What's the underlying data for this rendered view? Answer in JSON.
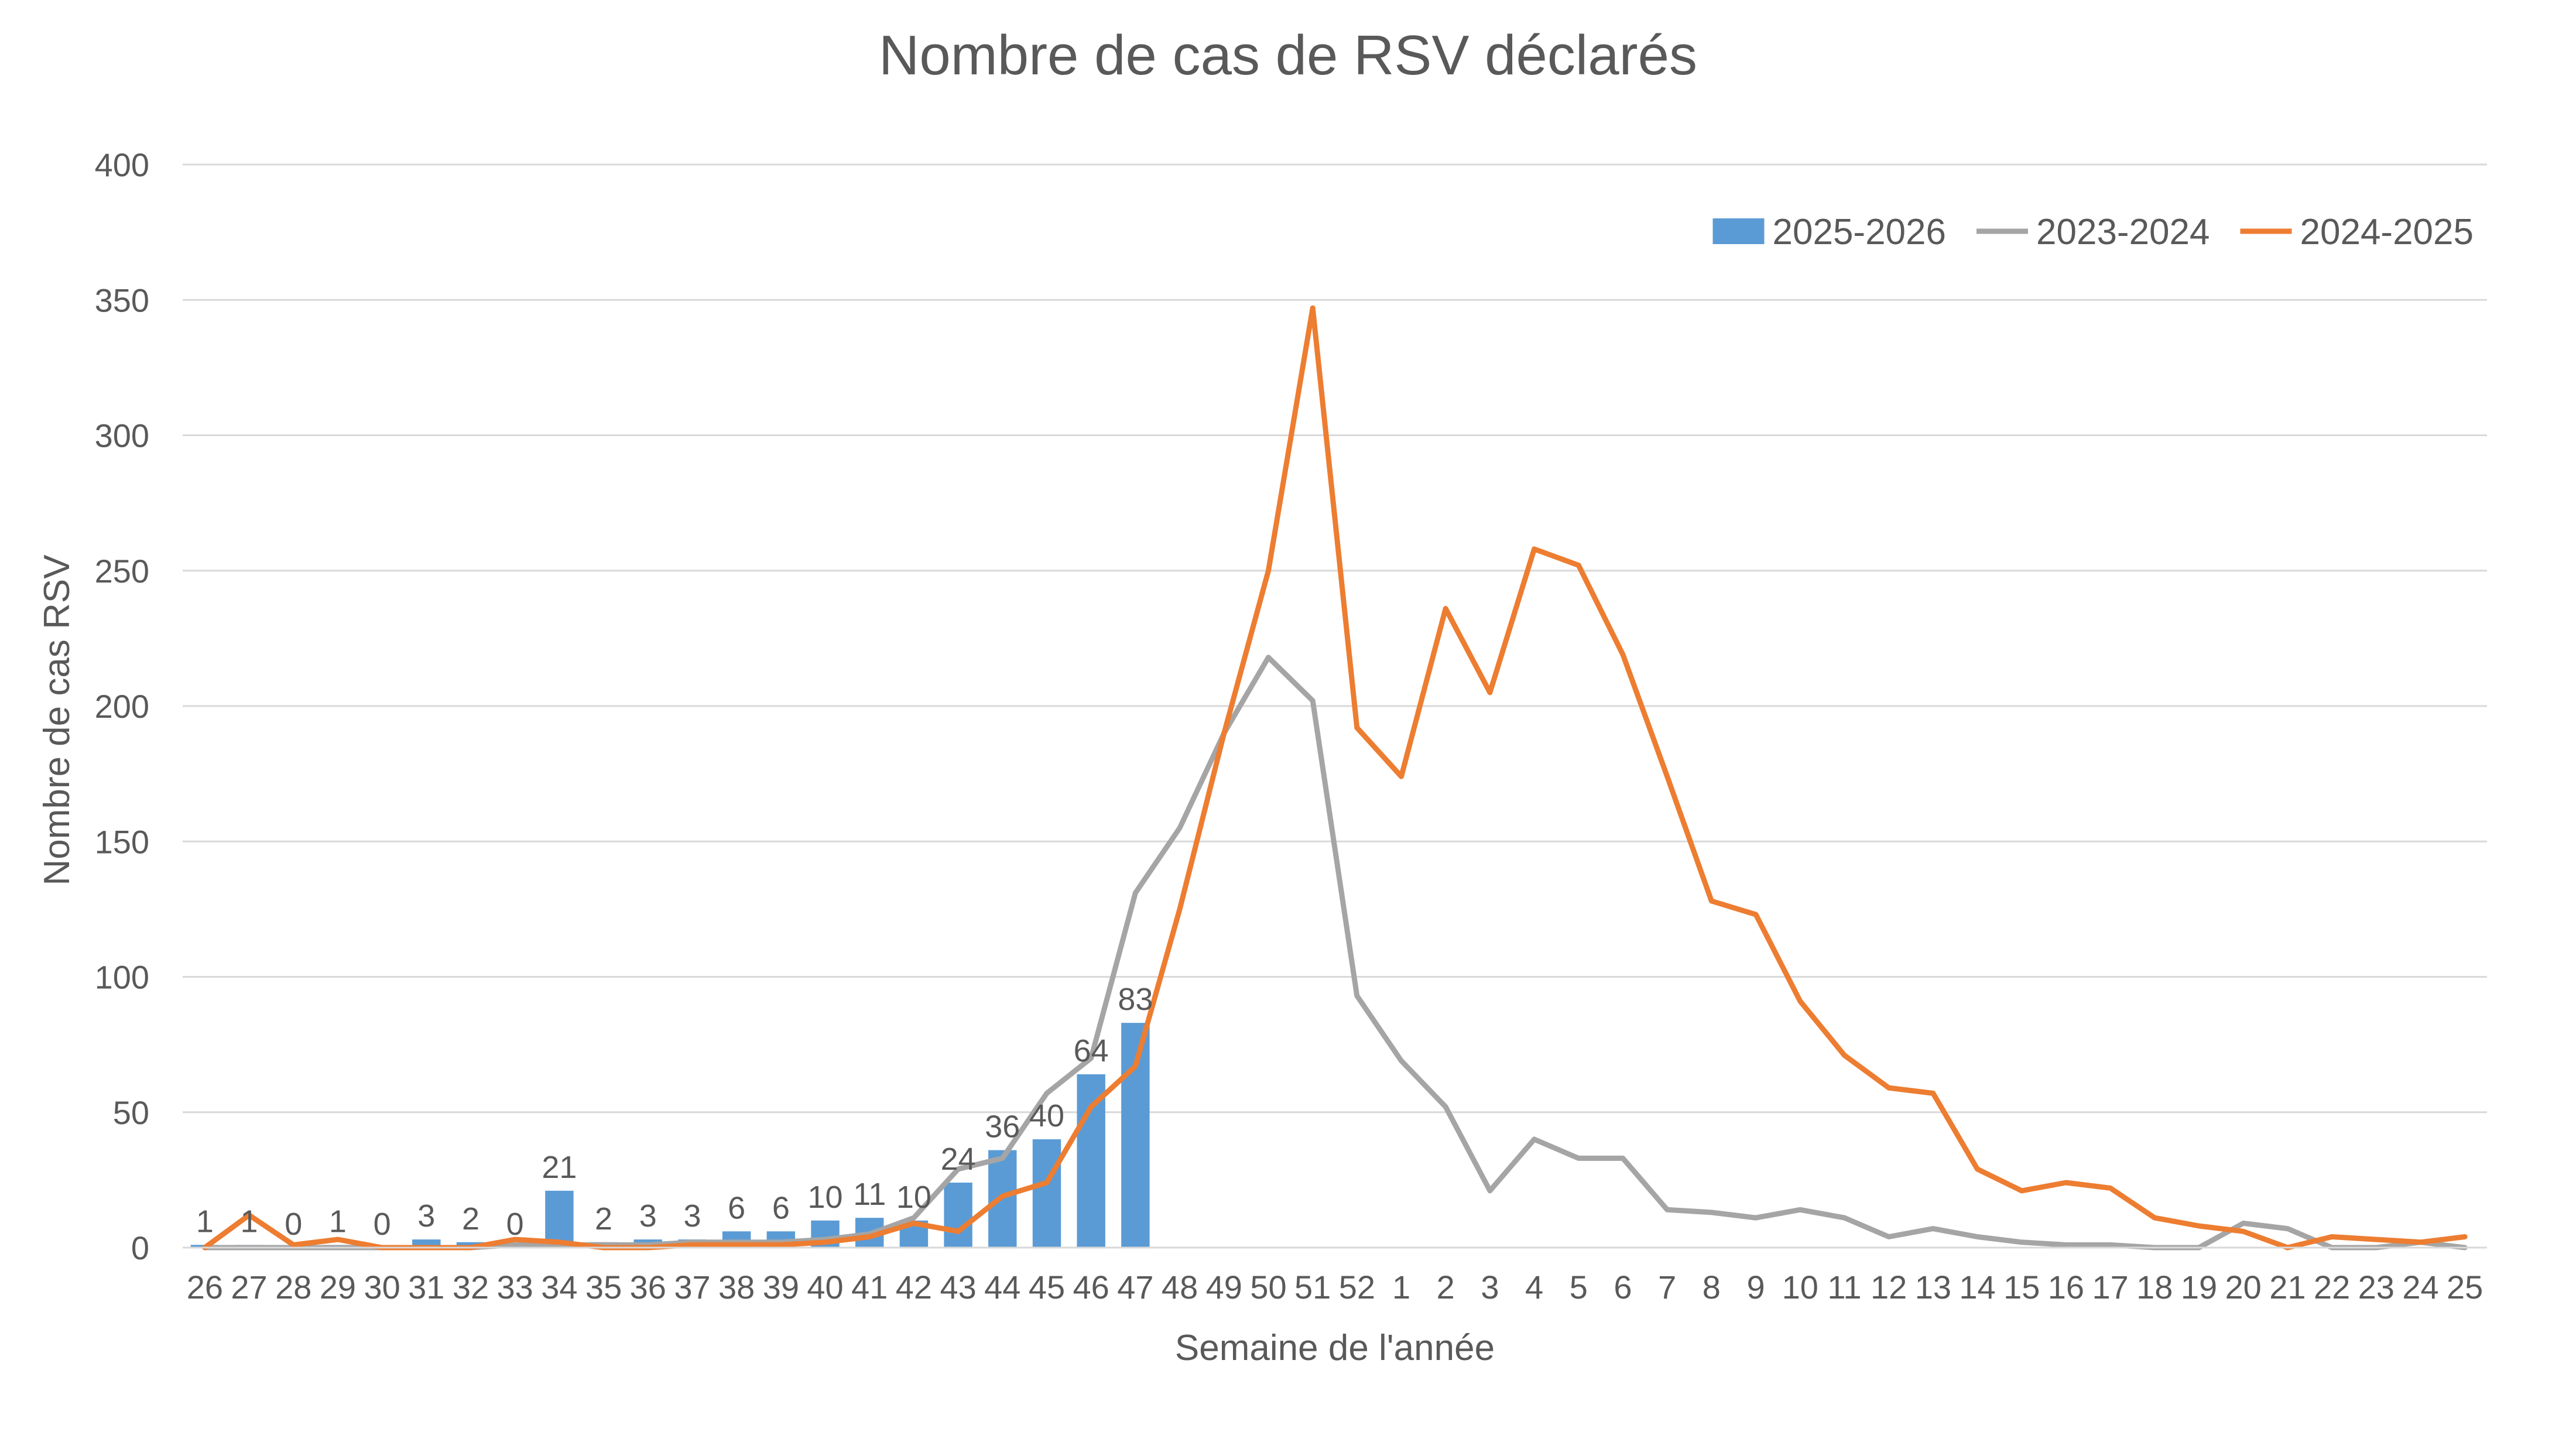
{
  "chart_data": {
    "type": "bar+line",
    "title": "Nombre de cas de RSV déclarés",
    "xlabel": "Semaine de l'année",
    "ylabel": "Nombre de cas RSV",
    "ylim": [
      0,
      400
    ],
    "yticks": [
      0,
      50,
      100,
      150,
      200,
      250,
      300,
      350,
      400
    ],
    "grid": true,
    "legend_position": "top-right",
    "categories": [
      "26",
      "27",
      "28",
      "29",
      "30",
      "31",
      "32",
      "33",
      "34",
      "35",
      "36",
      "37",
      "38",
      "39",
      "40",
      "41",
      "42",
      "43",
      "44",
      "45",
      "46",
      "47",
      "48",
      "49",
      "50",
      "51",
      "52",
      "1",
      "2",
      "3",
      "4",
      "5",
      "6",
      "7",
      "8",
      "9",
      "10",
      "11",
      "12",
      "13",
      "14",
      "15",
      "16",
      "17",
      "18",
      "19",
      "20",
      "21",
      "22",
      "23",
      "24",
      "25"
    ],
    "series": [
      {
        "name": "2025-2026",
        "type": "bar",
        "color": "#5b9bd5",
        "values": [
          1,
          1,
          0,
          1,
          0,
          3,
          2,
          0,
          21,
          2,
          3,
          3,
          6,
          6,
          10,
          11,
          10,
          24,
          36,
          40,
          64,
          83,
          null,
          null,
          null,
          null,
          null,
          null,
          null,
          null,
          null,
          null,
          null,
          null,
          null,
          null,
          null,
          null,
          null,
          null,
          null,
          null,
          null,
          null,
          null,
          null,
          null,
          null,
          null,
          null,
          null,
          null
        ]
      },
      {
        "name": "2023-2024",
        "type": "line",
        "color": "#a5a5a5",
        "values": [
          0,
          0,
          0,
          0,
          0,
          0,
          0,
          1,
          1,
          1,
          1,
          2,
          2,
          2,
          3,
          5,
          11,
          29,
          33,
          57,
          70,
          131,
          155,
          190,
          218,
          202,
          93,
          69,
          52,
          21,
          40,
          33,
          33,
          14,
          13,
          11,
          14,
          11,
          4,
          7,
          4,
          2,
          1,
          1,
          0,
          0,
          9,
          7,
          0,
          0,
          2,
          0
        ]
      },
      {
        "name": "2024-2025",
        "type": "line",
        "color": "#ed7d31",
        "values": [
          0,
          12,
          1,
          3,
          0,
          0,
          0,
          3,
          2,
          0,
          0,
          1,
          1,
          1,
          2,
          4,
          9,
          6,
          19,
          24,
          52,
          67,
          125,
          190,
          250,
          347,
          192,
          174,
          236,
          205,
          258,
          252,
          219,
          174,
          128,
          123,
          91,
          71,
          59,
          57,
          29,
          21,
          24,
          22,
          11,
          8,
          6,
          0,
          4,
          3,
          2,
          4
        ]
      }
    ]
  }
}
